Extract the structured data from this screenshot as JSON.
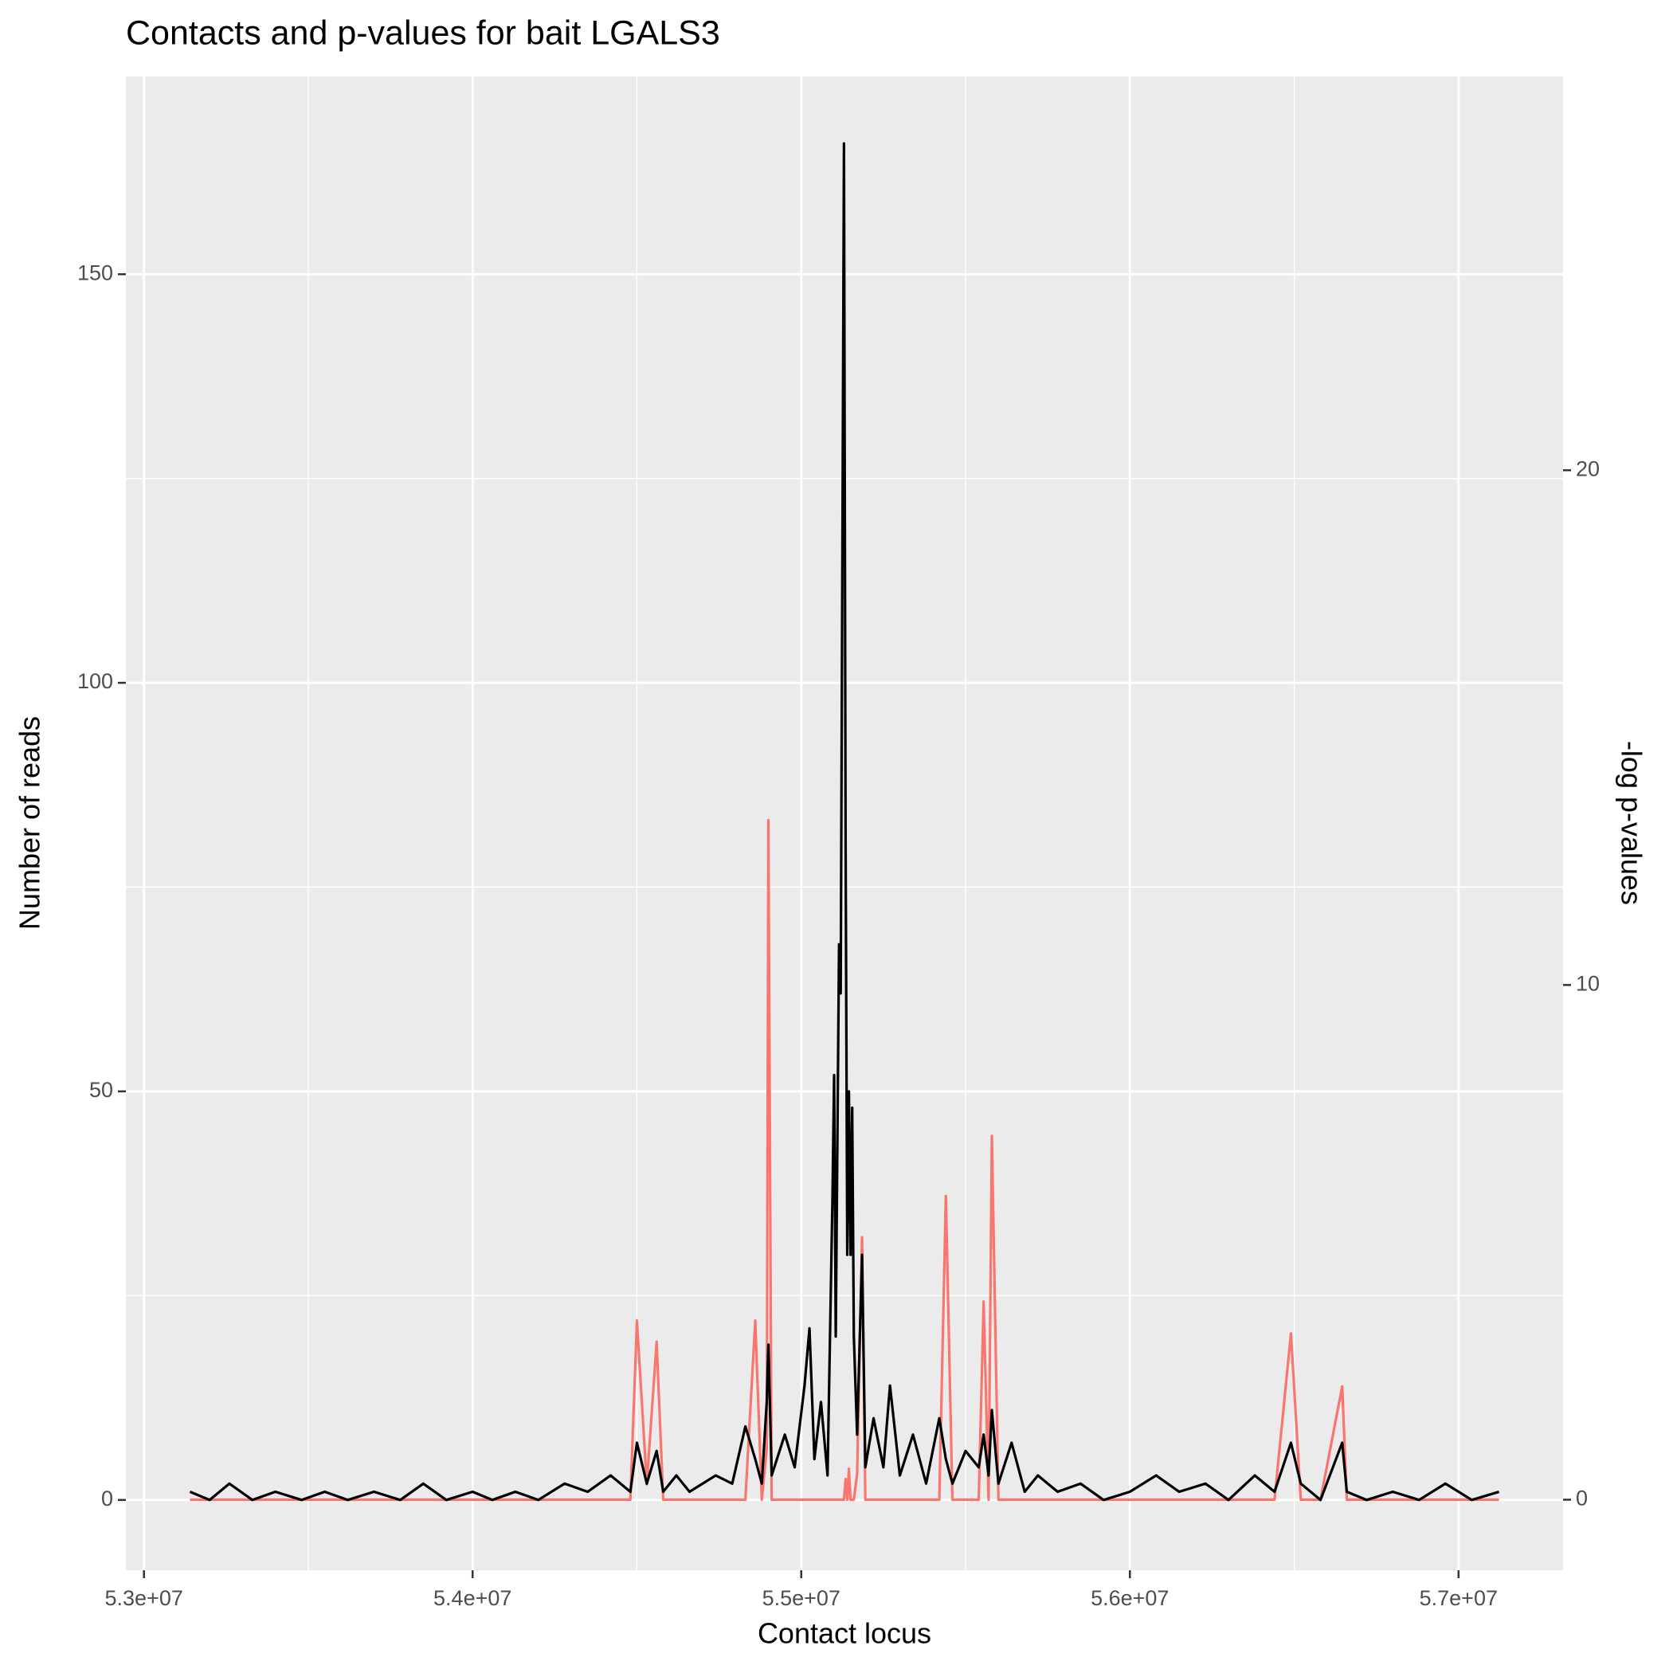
{
  "chart_data": {
    "type": "line",
    "title": "Contacts and p-values for bait LGALS3",
    "x_label": "Contact locus",
    "y_label": "Number of reads",
    "y2_label": "-log p-values",
    "x": [
      53140000,
      53200000,
      53260000,
      53330000,
      53400000,
      53480000,
      53550000,
      53620000,
      53700000,
      53780000,
      53850000,
      53920000,
      54000000,
      54060000,
      54130000,
      54200000,
      54280000,
      54350000,
      54420000,
      54480000,
      54500000,
      54530000,
      54560000,
      54580000,
      54620000,
      54660000,
      54700000,
      54740000,
      54790000,
      54830000,
      54860000,
      54880000,
      54895000,
      54900000,
      54910000,
      54950000,
      54980000,
      55010000,
      55025000,
      55040000,
      55060000,
      55080000,
      55095000,
      55100000,
      55105000,
      55115000,
      55120000,
      55130000,
      55135000,
      55140000,
      55145000,
      55150000,
      55155000,
      55160000,
      55170000,
      55185000,
      55195000,
      55220000,
      55250000,
      55270000,
      55300000,
      55340000,
      55380000,
      55420000,
      55440000,
      55460000,
      55500000,
      55540000,
      55555000,
      55570000,
      55580000,
      55600000,
      55640000,
      55680000,
      55720000,
      55780000,
      55850000,
      55920000,
      56000000,
      56080000,
      56150000,
      56230000,
      56300000,
      56380000,
      56440000,
      56490000,
      56520000,
      56580000,
      56646000,
      56660000,
      56720000,
      56800000,
      56880000,
      56960000,
      57040000,
      57123000
    ],
    "series": [
      {
        "name": "-log p-values",
        "color": "#F8766D",
        "axis": "y2",
        "values": [
          0,
          0,
          0,
          0,
          0,
          0,
          0,
          0,
          0,
          0,
          0,
          0,
          0,
          0,
          0,
          0,
          0,
          0,
          0,
          0,
          3.48,
          0.3,
          3.07,
          0,
          0,
          0,
          0,
          0,
          0,
          0,
          3.48,
          0,
          1,
          13.2,
          0,
          0,
          0,
          0,
          0,
          0,
          0,
          0,
          0,
          0,
          0,
          0,
          0,
          0,
          0.4,
          0,
          0.6,
          0,
          0,
          0,
          0.5,
          5.1,
          0,
          0,
          0,
          0,
          0,
          0,
          0,
          0,
          5.9,
          0,
          0,
          0,
          3.85,
          0,
          7.07,
          0,
          0,
          0,
          0,
          0,
          0,
          0,
          0,
          0,
          0,
          0,
          0,
          0,
          0,
          3.23,
          0,
          0,
          2.2,
          0,
          0,
          0,
          0,
          0,
          0,
          0
        ]
      },
      {
        "name": "Number of reads",
        "color": "#000000",
        "values": [
          1,
          0,
          2,
          0,
          1,
          0,
          1,
          0,
          1,
          0,
          2,
          0,
          1,
          0,
          1,
          0,
          2,
          1,
          3,
          1,
          7,
          2,
          6,
          1,
          3,
          1,
          2,
          3,
          2,
          9,
          5,
          2,
          12,
          19,
          3,
          8,
          4,
          14,
          21,
          5,
          12,
          3,
          37,
          52,
          20,
          68,
          62,
          166,
          80,
          30,
          50,
          30,
          48,
          20,
          8,
          30,
          4,
          10,
          4,
          14,
          3,
          8,
          2,
          10,
          5,
          2,
          6,
          4,
          8,
          3,
          11,
          2,
          7,
          1,
          3,
          1,
          2,
          0,
          1,
          3,
          1,
          2,
          0,
          3,
          1,
          7,
          2,
          0,
          7,
          1,
          0,
          1,
          0,
          2,
          0,
          1
        ]
      }
    ],
    "xlim": [
      52945000,
      57318000
    ],
    "xticks": [
      {
        "value": 53000000,
        "label": "5.3e+07"
      },
      {
        "value": 54000000,
        "label": "5.4e+07"
      },
      {
        "value": 55000000,
        "label": "5.5e+07"
      },
      {
        "value": 56000000,
        "label": "5.6e+07"
      },
      {
        "value": 57000000,
        "label": "5.7e+07"
      }
    ],
    "ylim": [
      -8.6,
      174.2
    ],
    "yticks": [
      0,
      50,
      100,
      150
    ],
    "y2lim": [
      -1.37,
      27.65
    ],
    "y2ticks": [
      0,
      10,
      20
    ],
    "grid": true
  }
}
